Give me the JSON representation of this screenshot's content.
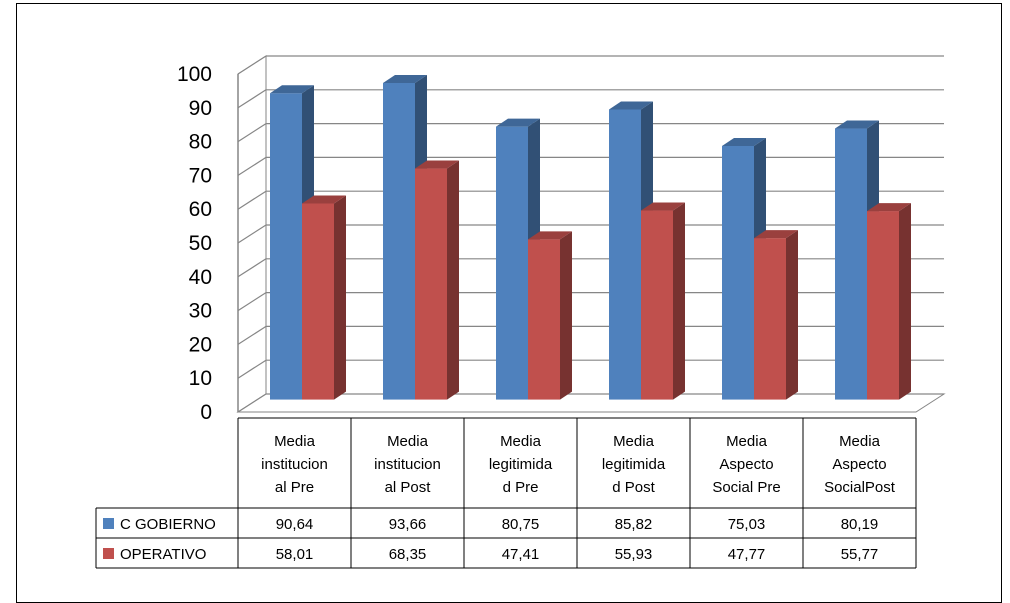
{
  "chart_data": {
    "type": "bar",
    "three_d": true,
    "categories": [
      [
        "Media",
        "institucion",
        "al Pre"
      ],
      [
        "Media",
        "institucion",
        "al Post"
      ],
      [
        "Media",
        "legitimida",
        "d Pre"
      ],
      [
        "Media",
        "legitimida",
        "d Post"
      ],
      [
        "Media",
        "Aspecto",
        "Social Pre"
      ],
      [
        "Media",
        "Aspecto",
        "SocialPost"
      ]
    ],
    "series": [
      {
        "name": "C GOBIERNO",
        "color": "#4f81bd",
        "values": [
          90.64,
          93.66,
          80.75,
          85.82,
          75.03,
          80.19
        ],
        "labels": [
          "90,64",
          "93,66",
          "80,75",
          "85,82",
          "75,03",
          "80,19"
        ]
      },
      {
        "name": "OPERATIVO",
        "color": "#c0504d",
        "values": [
          58.01,
          68.35,
          47.41,
          55.93,
          47.77,
          55.77
        ],
        "labels": [
          "58,01",
          "68,35",
          "47,41",
          "55,93",
          "47,77",
          "55,77"
        ]
      }
    ],
    "ylim": [
      0,
      100
    ],
    "yticks": [
      "0",
      "10",
      "20",
      "30",
      "40",
      "50",
      "60",
      "70",
      "80",
      "90",
      "100"
    ],
    "grid": true,
    "data_table": true
  }
}
